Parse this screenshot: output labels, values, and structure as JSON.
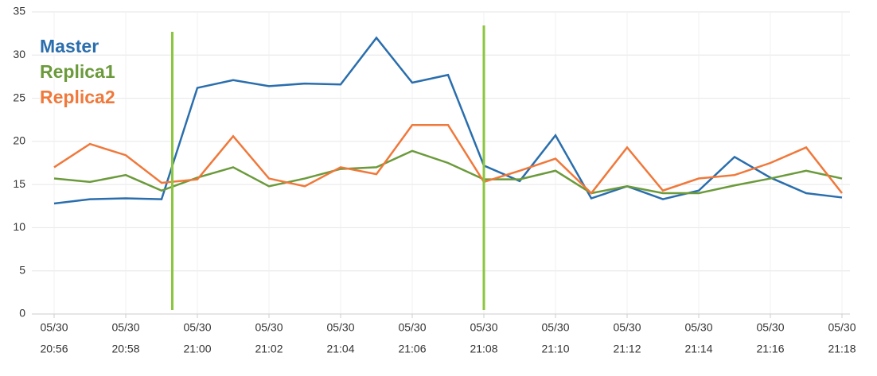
{
  "chart_data": {
    "type": "line",
    "x_labels": [
      {
        "date": "05/30",
        "time": "20:56"
      },
      null,
      {
        "date": "05/30",
        "time": "20:58"
      },
      null,
      {
        "date": "05/30",
        "time": "21:00"
      },
      null,
      {
        "date": "05/30",
        "time": "21:02"
      },
      null,
      {
        "date": "05/30",
        "time": "21:04"
      },
      null,
      {
        "date": "05/30",
        "time": "21:06"
      },
      null,
      {
        "date": "05/30",
        "time": "21:08"
      },
      null,
      {
        "date": "05/30",
        "time": "21:10"
      },
      null,
      {
        "date": "05/30",
        "time": "21:12"
      },
      null,
      {
        "date": "05/30",
        "time": "21:14"
      },
      null,
      {
        "date": "05/30",
        "time": "21:16"
      },
      null,
      {
        "date": "05/30",
        "time": "21:18"
      }
    ],
    "series": [
      {
        "name": "Master",
        "color": "#2a6ead",
        "values": [
          12.8,
          13.3,
          13.4,
          13.3,
          26.2,
          27.1,
          26.4,
          26.7,
          26.6,
          32.0,
          26.8,
          27.7,
          17.2,
          15.4,
          20.7,
          13.4,
          14.8,
          13.3,
          14.3,
          18.2,
          15.8,
          14.0,
          13.5
        ]
      },
      {
        "name": "Replica1",
        "color": "#6b9a3b",
        "values": [
          15.7,
          15.3,
          16.1,
          14.3,
          15.8,
          17.0,
          14.8,
          15.7,
          16.8,
          17.0,
          18.9,
          17.5,
          15.6,
          15.6,
          16.6,
          14.0,
          14.8,
          14.0,
          14.0,
          14.9,
          15.7,
          16.6,
          15.7
        ]
      },
      {
        "name": "Replica2",
        "color": "#f0783a",
        "values": [
          17.0,
          19.7,
          18.4,
          15.2,
          15.6,
          20.6,
          15.7,
          14.8,
          17.0,
          16.2,
          21.9,
          21.9,
          15.3,
          16.6,
          18.0,
          14.0,
          19.3,
          14.3,
          15.7,
          16.1,
          17.5,
          19.3,
          14.0
        ]
      }
    ],
    "markers": {
      "color": "#8cc63f",
      "x": [
        3.3,
        12
      ]
    },
    "ylim": [
      0,
      35
    ],
    "yticks": [
      0,
      5,
      10,
      15,
      20,
      25,
      30,
      35
    ],
    "grid": true
  }
}
